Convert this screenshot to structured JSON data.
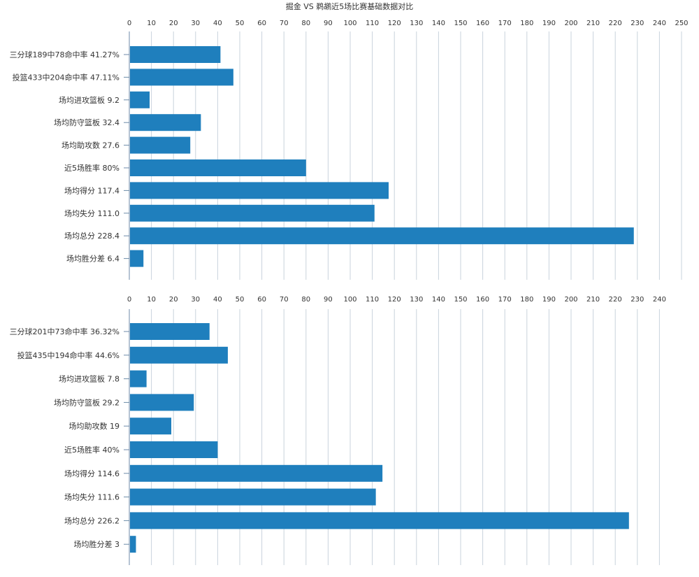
{
  "title": "掘金 VS 鹈鹕近5场比赛基础数据对比",
  "colors": {
    "bar": "#1f7fbd",
    "grid": "#c9d3dc",
    "axis": "#6c8aa8",
    "text": "#333333"
  },
  "chart_data": [
    {
      "type": "bar",
      "orientation": "horizontal",
      "xlim": [
        0,
        250
      ],
      "tick_step": 10,
      "grid": true,
      "ticks": [
        "0",
        "10",
        "20",
        "30",
        "40",
        "50",
        "60",
        "70",
        "80",
        "90",
        "100",
        "110",
        "120",
        "130",
        "140",
        "150",
        "160",
        "170",
        "180",
        "190",
        "200",
        "210",
        "220",
        "230",
        "240",
        "250"
      ],
      "categories": [
        "三分球189中78命中率 41.27%",
        "投篮433中204命中率 47.11%",
        "场均进攻篮板 9.2",
        "场均防守篮板 32.4",
        "场均助攻数 27.6",
        "近5场胜率 80%",
        "场均得分 117.4",
        "场均失分 111.0",
        "场均总分 228.4",
        "场均胜分差 6.4"
      ],
      "values": [
        41.27,
        47.11,
        9.2,
        32.4,
        27.6,
        80,
        117.4,
        111.0,
        228.4,
        6.4
      ]
    },
    {
      "type": "bar",
      "orientation": "horizontal",
      "xlim": [
        0,
        240
      ],
      "tick_step": 10,
      "grid": true,
      "ticks": [
        "0",
        "10",
        "20",
        "30",
        "40",
        "50",
        "60",
        "70",
        "80",
        "90",
        "100",
        "110",
        "120",
        "130",
        "140",
        "150",
        "160",
        "170",
        "180",
        "190",
        "200",
        "210",
        "220",
        "230",
        "240"
      ],
      "categories": [
        "三分球201中73命中率 36.32%",
        "投篮435中194命中率 44.6%",
        "场均进攻篮板 7.8",
        "场均防守篮板 29.2",
        "场均助攻数 19",
        "近5场胜率 40%",
        "场均得分 114.6",
        "场均失分 111.6",
        "场均总分 226.2",
        "场均胜分差 3"
      ],
      "values": [
        36.32,
        44.6,
        7.8,
        29.2,
        19,
        40,
        114.6,
        111.6,
        226.2,
        3
      ]
    }
  ]
}
